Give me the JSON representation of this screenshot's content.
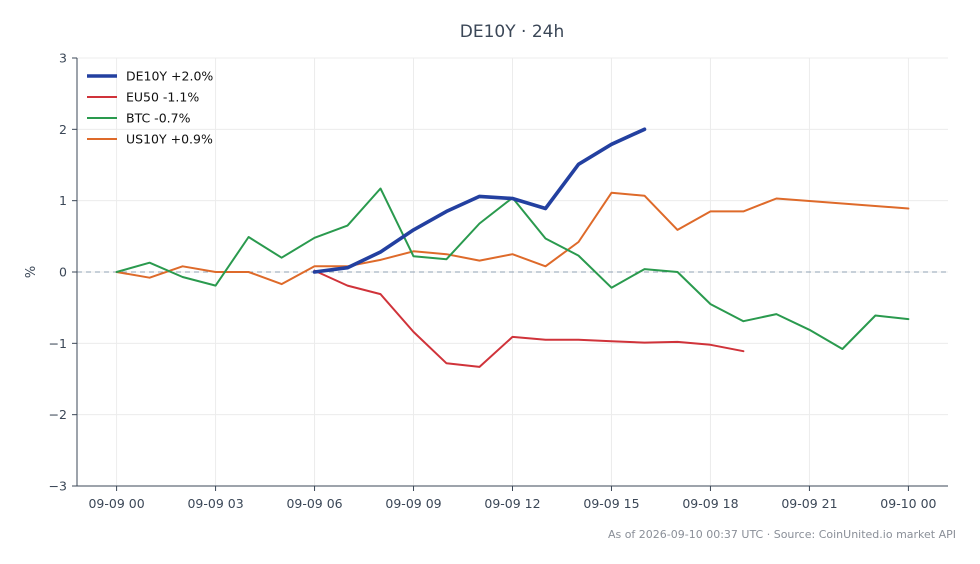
{
  "chart_data": {
    "type": "line",
    "title": "DE10Y · 24h",
    "xlabel": "",
    "ylabel": "%",
    "ylim": [
      -3,
      3
    ],
    "yticks": [
      3,
      2,
      1,
      0,
      -1,
      -2,
      -3
    ],
    "ytick_labels": [
      "3",
      "2",
      "1",
      "0",
      "−1",
      "−2",
      "−3"
    ],
    "xlim_hours": [
      -1.2,
      25.2
    ],
    "xticks": [
      {
        "hour": 0,
        "label": "09-09 00"
      },
      {
        "hour": 3,
        "label": "09-09 03"
      },
      {
        "hour": 6,
        "label": "09-09 06"
      },
      {
        "hour": 9,
        "label": "09-09 09"
      },
      {
        "hour": 12,
        "label": "09-09 12"
      },
      {
        "hour": 15,
        "label": "09-09 15"
      },
      {
        "hour": 18,
        "label": "09-09 18"
      },
      {
        "hour": 21,
        "label": "09-09 21"
      },
      {
        "hour": 24,
        "label": "09-10 00"
      }
    ],
    "grid": true,
    "zero_line": true,
    "legend_position": "top-left",
    "series": [
      {
        "name": "DE10Y +2.0%",
        "color": "#2340a0",
        "x": [
          6,
          7,
          8,
          9,
          10,
          11,
          12,
          13,
          14,
          15,
          16
        ],
        "y": [
          0.0,
          0.06,
          0.28,
          0.59,
          0.85,
          1.06,
          1.03,
          0.89,
          1.51,
          1.79,
          2.0
        ]
      },
      {
        "name": "EU50 -1.1%",
        "color": "#d0333a",
        "x": [
          6,
          7,
          8,
          9,
          10,
          11,
          12,
          13,
          14,
          15,
          16,
          17,
          18,
          19
        ],
        "y": [
          0.02,
          -0.19,
          -0.31,
          -0.84,
          -1.28,
          -1.33,
          -0.91,
          -0.95,
          -0.95,
          -0.97,
          -0.99,
          -0.98,
          -1.02,
          -1.11
        ]
      },
      {
        "name": "BTC -0.7%",
        "color": "#2a9a4e",
        "x": [
          0,
          1,
          2,
          3,
          4,
          5,
          6,
          7,
          8,
          9,
          10,
          11,
          12,
          13,
          14,
          15,
          16,
          17,
          18,
          19,
          20,
          21,
          22,
          23,
          24
        ],
        "y": [
          0.0,
          0.13,
          -0.07,
          -0.19,
          0.49,
          0.2,
          0.48,
          0.65,
          1.17,
          0.22,
          0.18,
          0.68,
          1.04,
          0.47,
          0.23,
          -0.22,
          0.04,
          0.0,
          -0.45,
          -0.69,
          -0.59,
          -0.81,
          -1.08,
          -0.61,
          -0.66
        ]
      },
      {
        "name": "US10Y +0.9%",
        "color": "#de6a2a",
        "x": [
          0,
          1,
          2,
          3,
          4,
          5,
          6,
          7,
          8,
          9,
          10,
          11,
          12,
          13,
          14,
          15,
          16,
          17,
          18,
          19,
          20,
          24
        ],
        "y": [
          0.0,
          -0.08,
          0.08,
          0.0,
          0.0,
          -0.17,
          0.08,
          0.08,
          0.17,
          0.29,
          0.25,
          0.16,
          0.25,
          0.08,
          0.42,
          1.11,
          1.07,
          0.59,
          0.85,
          0.85,
          1.03,
          0.89
        ]
      }
    ]
  },
  "footer": "As of 2026-09-10 00:37 UTC · Source: CoinUnited.io market API"
}
